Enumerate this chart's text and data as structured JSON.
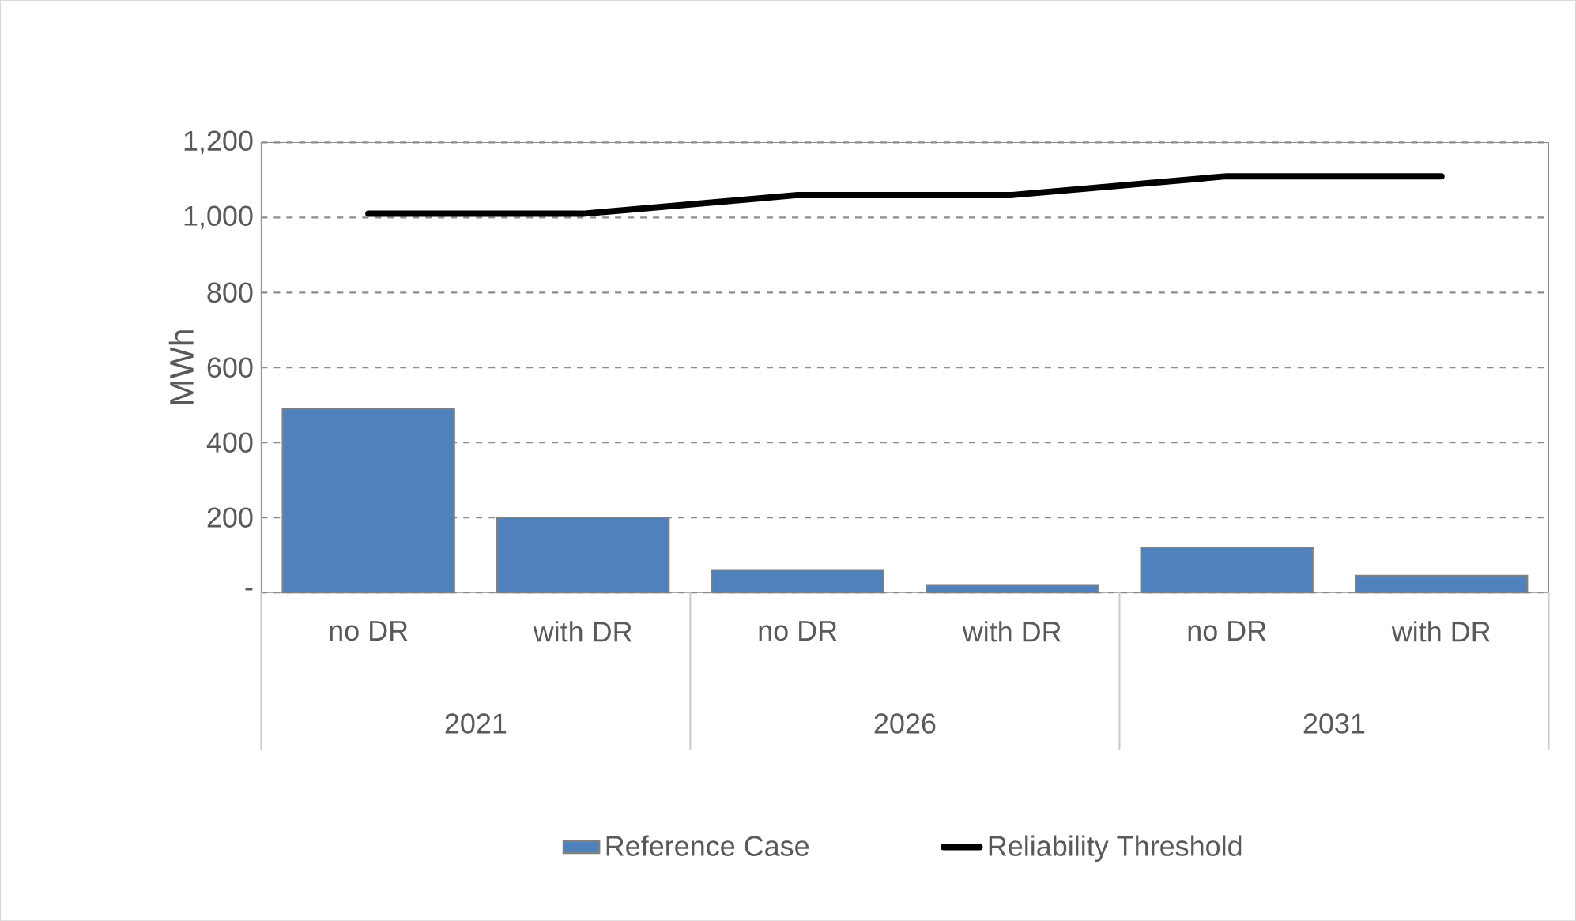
{
  "chart_data": {
    "type": "bar",
    "ylabel": "MWh",
    "categories": [
      "no DR",
      "with DR",
      "no DR",
      "with DR",
      "no DR",
      "with DR"
    ],
    "annotations": [
      "2021",
      "2026",
      "2031"
    ],
    "series": [
      {
        "name": "Reference Case",
        "color": "#4f81bd",
        "values": [
          490,
          200,
          60,
          20,
          120,
          45
        ]
      },
      {
        "name": "Reliability Threshold",
        "type": "line",
        "color": "#000000",
        "line_style": "solid",
        "values": [
          1010,
          1010,
          1060,
          1060,
          1110,
          1110
        ]
      }
    ],
    "ylim": [
      0,
      1200
    ],
    "yticks": [
      {
        "value": 0,
        "label": "-"
      },
      {
        "value": 200,
        "label": "200"
      },
      {
        "value": 400,
        "label": "400"
      },
      {
        "value": 600,
        "label": "600"
      },
      {
        "value": 800,
        "label": "800"
      },
      {
        "value": 1000,
        "label": "1,000"
      },
      {
        "value": 1200,
        "label": "1,200"
      }
    ],
    "grid": "y",
    "legend": "bottom"
  }
}
